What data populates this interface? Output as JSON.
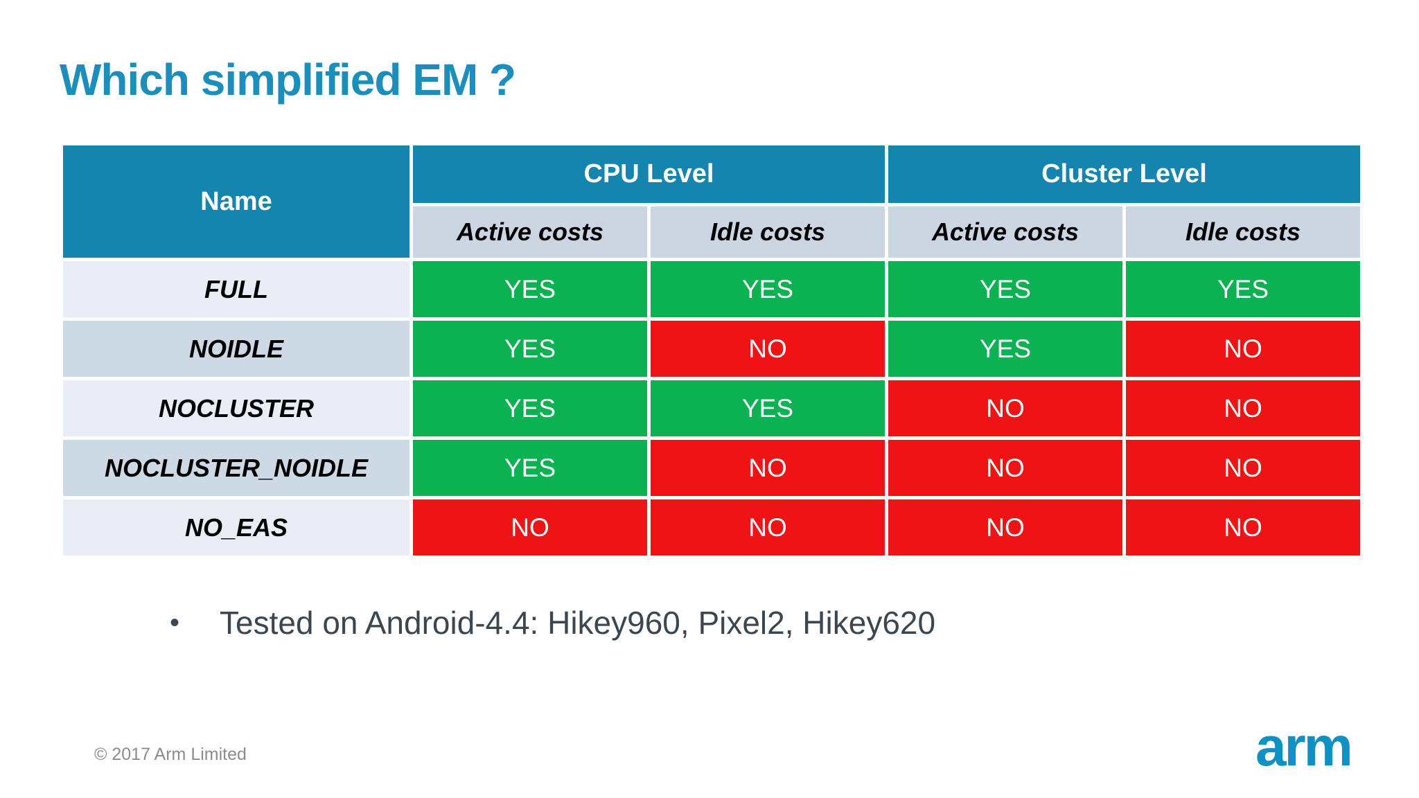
{
  "title": "Which simplified EM ?",
  "table": {
    "name_header": "Name",
    "groups": [
      {
        "label": "CPU Level",
        "subcols": [
          "Active costs",
          "Idle costs"
        ]
      },
      {
        "label": "Cluster Level",
        "subcols": [
          "Active costs",
          "Idle costs"
        ]
      }
    ],
    "rows": [
      {
        "name": "FULL",
        "values": [
          "YES",
          "YES",
          "YES",
          "YES"
        ]
      },
      {
        "name": "NOIDLE",
        "values": [
          "YES",
          "NO",
          "YES",
          "NO"
        ]
      },
      {
        "name": "NOCLUSTER",
        "values": [
          "YES",
          "YES",
          "NO",
          "NO"
        ]
      },
      {
        "name": "NOCLUSTER_NOIDLE",
        "values": [
          "YES",
          "NO",
          "NO",
          "NO"
        ]
      },
      {
        "name": "NO_EAS",
        "values": [
          "NO",
          "NO",
          "NO",
          "NO"
        ]
      }
    ]
  },
  "bullet": "Tested on Android-4.4: Hikey960, Pixel2, Hikey620",
  "bullet_glyph": "•",
  "footer": {
    "copyright": "© 2017 Arm Limited",
    "logo": "arm"
  },
  "colors": {
    "title_blue": "#1b8ebc",
    "header_blue": "#1584ae",
    "subheader_bg": "#ccd5e2",
    "row_light": "#e9edf5",
    "row_dark": "#cdd9e4",
    "yes_green": "#0cb151",
    "no_red": "#ef1315",
    "bullet_text": "#3a4750",
    "footer_gray": "#8c8c8c",
    "logo_blue": "#0f91c4"
  },
  "chart_data": {
    "type": "table",
    "title": "Which simplified EM ?",
    "columns": [
      "Name",
      "CPU Level / Active costs",
      "CPU Level / Idle costs",
      "Cluster Level / Active costs",
      "Cluster Level / Idle costs"
    ],
    "rows": [
      [
        "FULL",
        "YES",
        "YES",
        "YES",
        "YES"
      ],
      [
        "NOIDLE",
        "YES",
        "NO",
        "YES",
        "NO"
      ],
      [
        "NOCLUSTER",
        "YES",
        "YES",
        "NO",
        "NO"
      ],
      [
        "NOCLUSTER_NOIDLE",
        "YES",
        "NO",
        "NO",
        "NO"
      ],
      [
        "NO_EAS",
        "NO",
        "NO",
        "NO",
        "NO"
      ]
    ]
  }
}
